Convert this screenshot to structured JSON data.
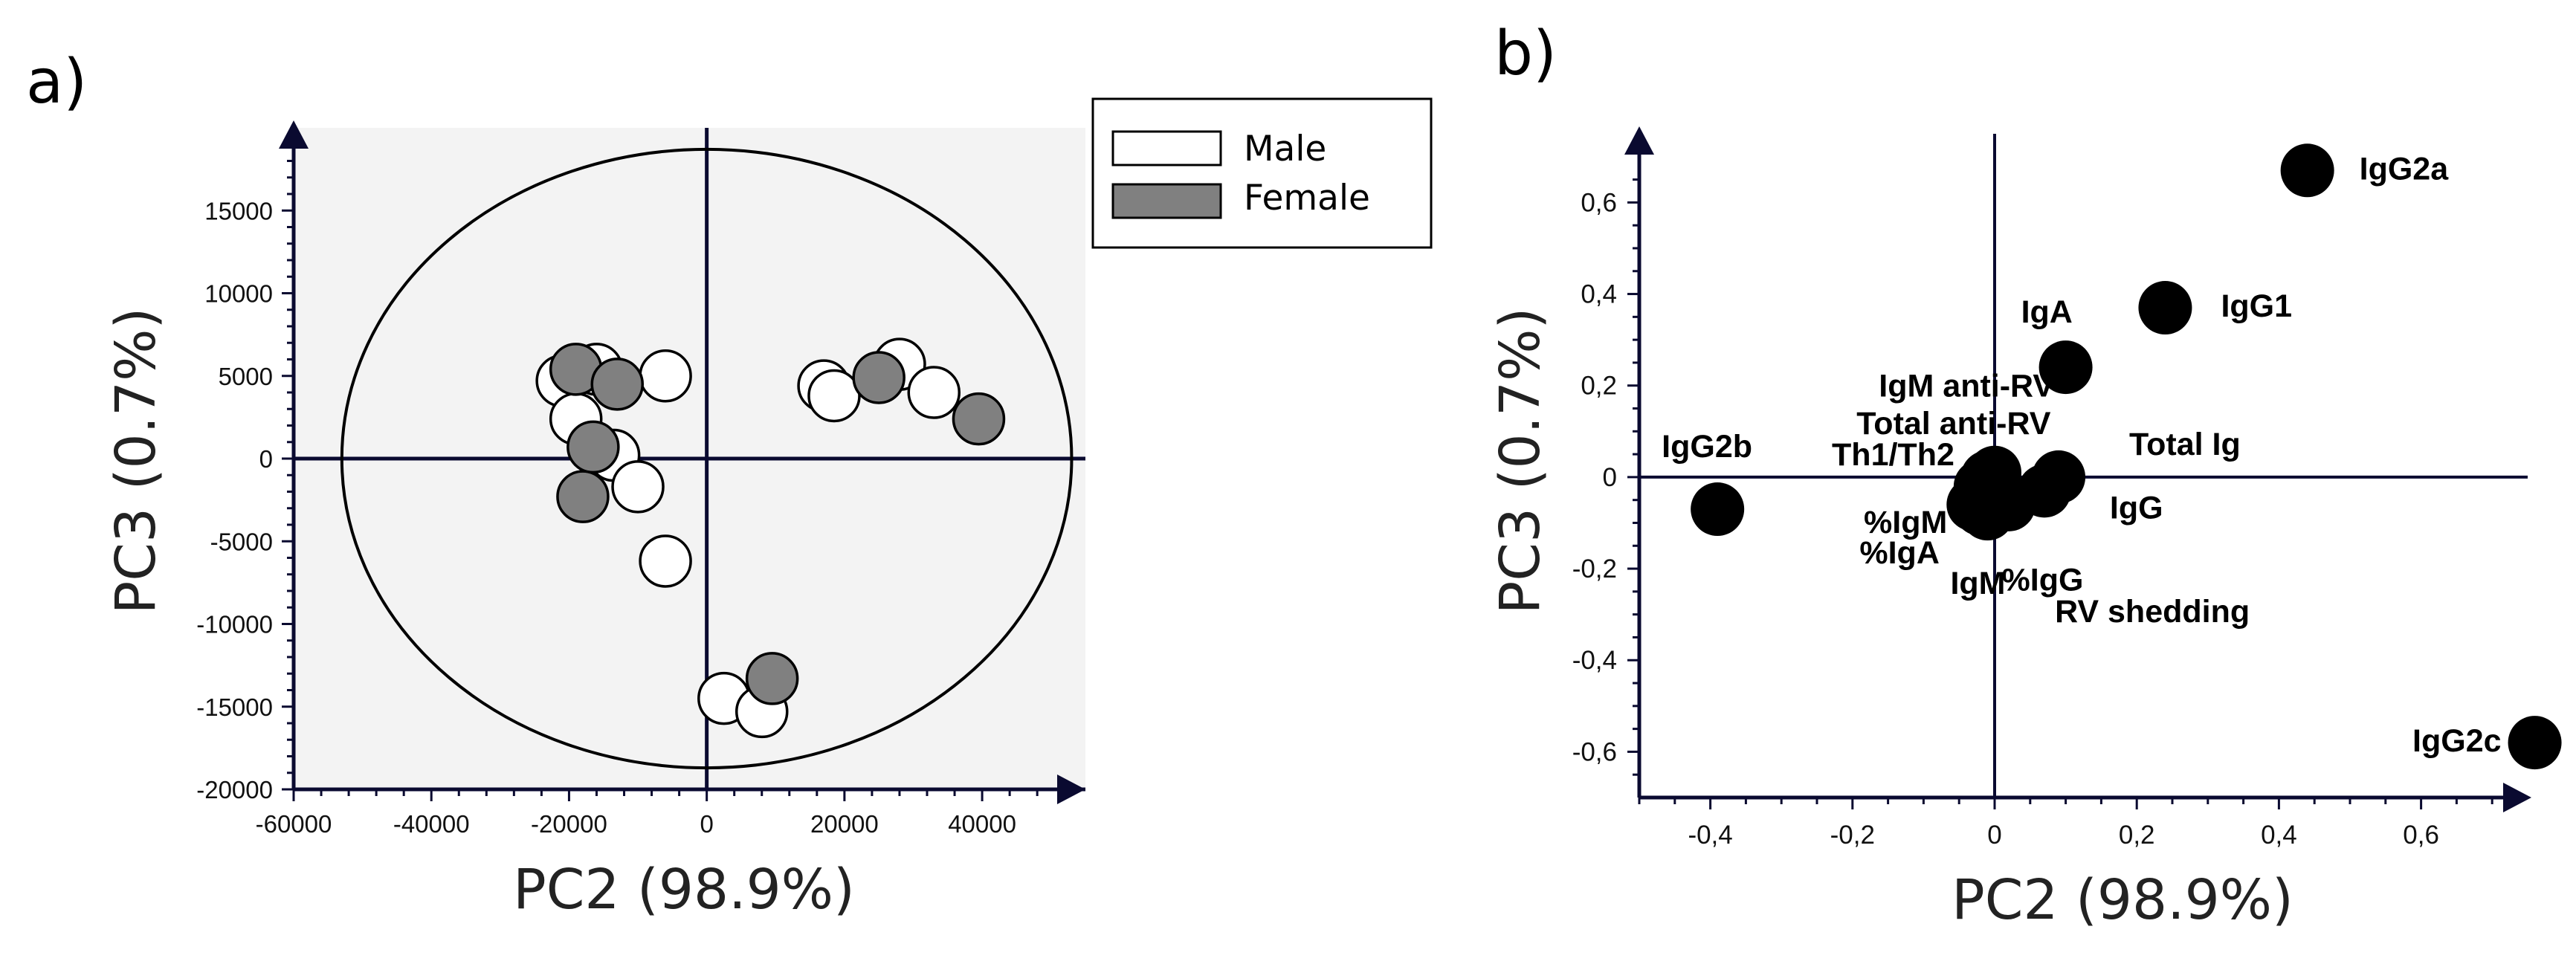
{
  "chart_data": [
    {
      "panel": "a)",
      "type": "scatter",
      "xlabel": "PC2 (98.9%)",
      "ylabel": "PC3 (0.7%)",
      "xlim": [
        -60000,
        55000
      ],
      "ylim": [
        -20000,
        20000
      ],
      "xticks": [
        -60000,
        -40000,
        -20000,
        0,
        20000,
        40000
      ],
      "yticks": [
        -20000,
        -15000,
        -10000,
        -5000,
        0,
        5000,
        10000,
        15000
      ],
      "xtick_labels": [
        "-60000",
        "-40000",
        "-20000",
        "0",
        "20000",
        "40000"
      ],
      "ytick_labels": [
        "-20000",
        "-15000",
        "-10000",
        "-5000",
        "0",
        "5000",
        "10000",
        "15000"
      ],
      "ellipse": {
        "cx": 0,
        "cy": 0,
        "rx": 53000,
        "ry": 18700
      },
      "legend": {
        "placement": "top-right",
        "entries": [
          "Male",
          "Female"
        ]
      },
      "series": [
        {
          "name": "Male",
          "color": "#ffffff",
          "points": [
            [
              -21000,
              4700
            ],
            [
              -16000,
              5400
            ],
            [
              -6000,
              5000
            ],
            [
              -19000,
              2400
            ],
            [
              -13500,
              200
            ],
            [
              -10000,
              -1700
            ],
            [
              -6000,
              -6200
            ],
            [
              17000,
              4400
            ],
            [
              18500,
              3800
            ],
            [
              28000,
              5700
            ],
            [
              33000,
              4000
            ],
            [
              2500,
              -14500
            ],
            [
              8000,
              -15300
            ]
          ]
        },
        {
          "name": "Female",
          "color": "#808080",
          "points": [
            [
              -19000,
              5400
            ],
            [
              -13000,
              4500
            ],
            [
              -16500,
              700
            ],
            [
              -18000,
              -2300
            ],
            [
              25000,
              4900
            ],
            [
              39500,
              2400
            ],
            [
              9500,
              -13300
            ]
          ]
        }
      ]
    },
    {
      "panel": "b)",
      "type": "scatter",
      "xlabel": "PC2 (98.9%)",
      "ylabel": "PC3 (0.7%)",
      "xlim": [
        -0.5,
        0.75
      ],
      "ylim": [
        -0.7,
        0.75
      ],
      "xticks": [
        -0.4,
        -0.2,
        0,
        0.2,
        0.4,
        0.6
      ],
      "yticks": [
        -0.6,
        -0.4,
        -0.2,
        0,
        0.2,
        0.4,
        0.6
      ],
      "xtick_labels": [
        "-0,4",
        "-0,2",
        "0",
        "0,2",
        "0,4",
        "0,6"
      ],
      "ytick_labels": [
        "-0,6",
        "-0,4",
        "-0,2",
        "0",
        "0,2",
        "0,4",
        "0,6"
      ],
      "point_color": "#000000",
      "points": [
        {
          "label": "IgG2a",
          "x": 0.44,
          "y": 0.67
        },
        {
          "label": "IgG1",
          "x": 0.24,
          "y": 0.37
        },
        {
          "label": "IgA",
          "x": 0.1,
          "y": 0.24
        },
        {
          "label": "IgG2b",
          "x": -0.39,
          "y": -0.07
        },
        {
          "label": "IgG2c",
          "x": 0.76,
          "y": -0.58
        },
        {
          "label": "Total Ig",
          "x": 0.09,
          "y": 0.0
        },
        {
          "label": "IgG",
          "x": 0.07,
          "y": -0.03
        },
        {
          "label": "IgM anti-RV",
          "x": 0.0,
          "y": 0.01
        },
        {
          "label": "Total anti-RV",
          "x": -0.01,
          "y": 0.0
        },
        {
          "label": "Th1/Th2",
          "x": -0.02,
          "y": -0.02
        },
        {
          "label": "%IgM",
          "x": -0.03,
          "y": -0.06
        },
        {
          "label": "%IgA",
          "x": -0.02,
          "y": -0.07
        },
        {
          "label": "IgM",
          "x": -0.01,
          "y": -0.08
        },
        {
          "label": "%IgG",
          "x": 0.01,
          "y": -0.05
        },
        {
          "label": "RV shedding",
          "x": 0.02,
          "y": -0.06
        }
      ]
    }
  ]
}
